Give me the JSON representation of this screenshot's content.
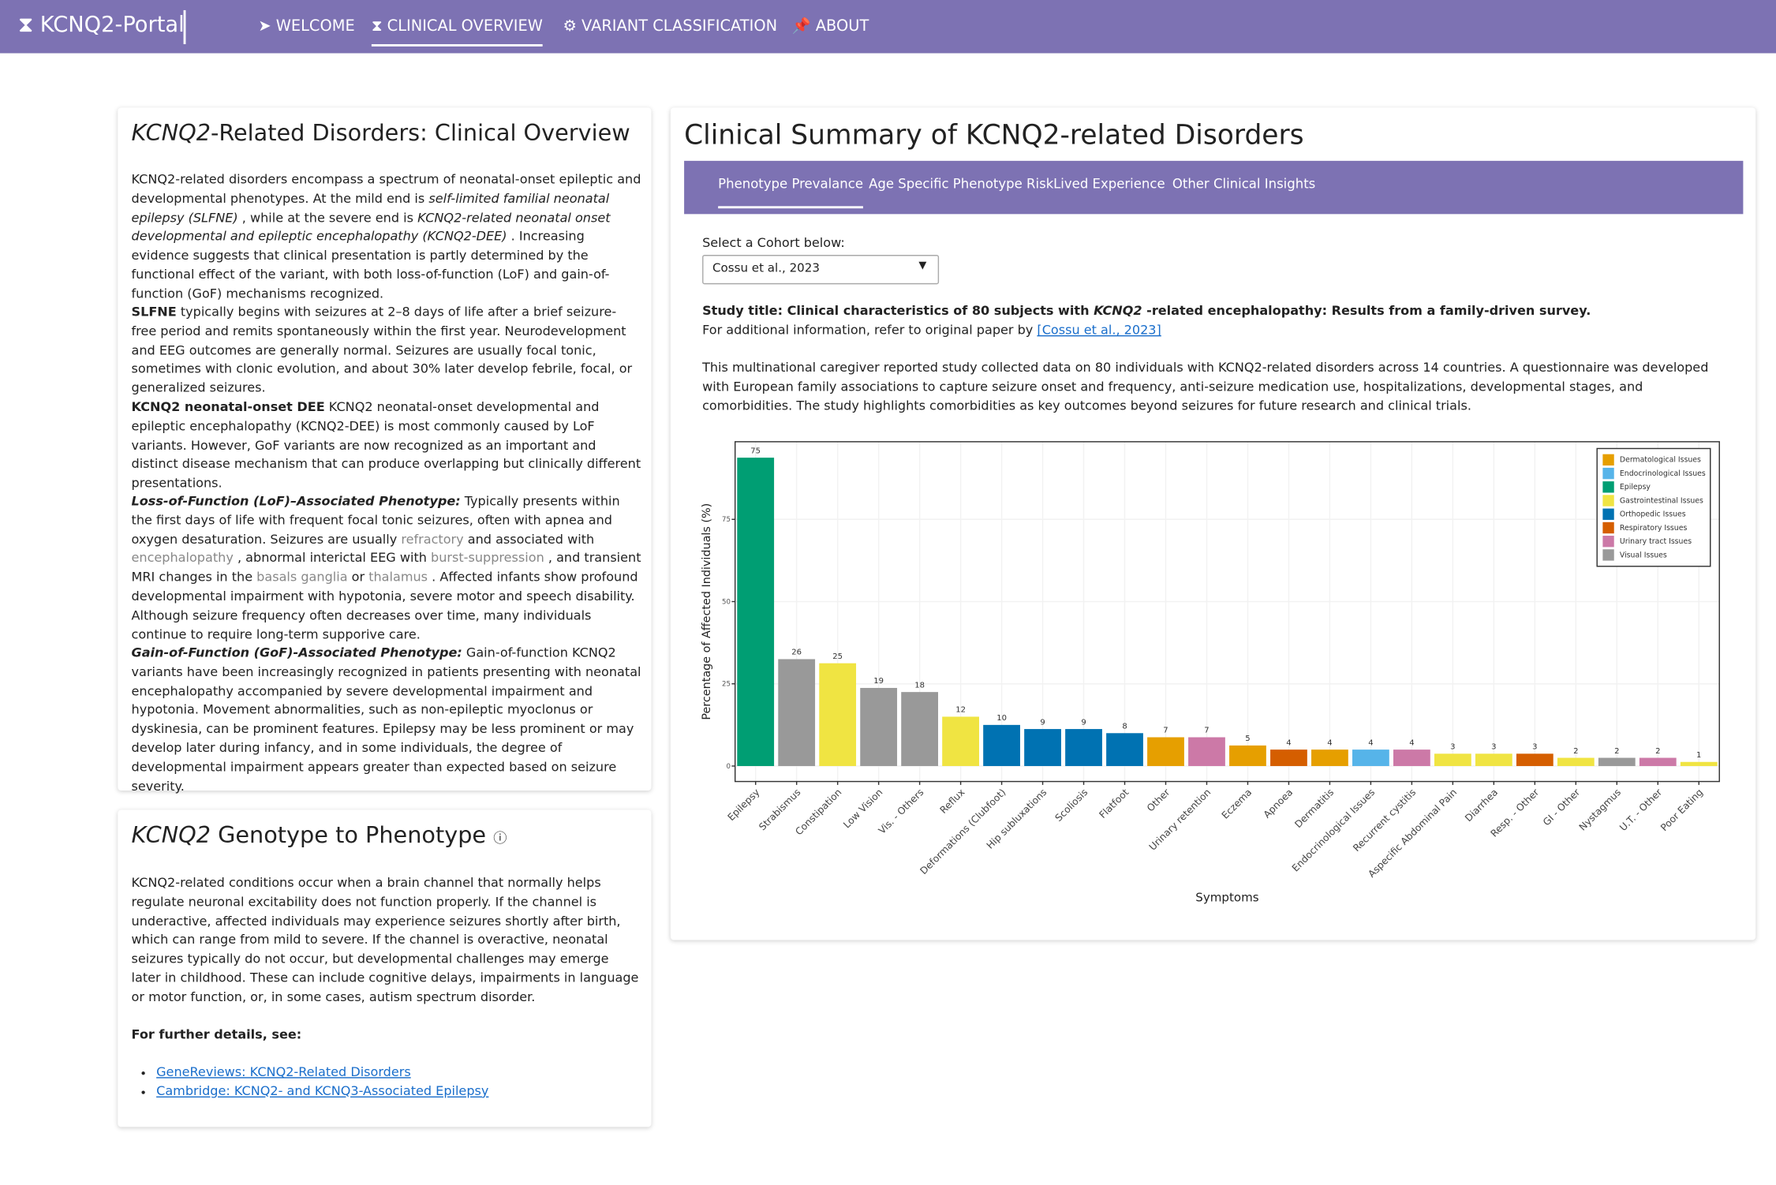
{
  "nav": {
    "brand": "KCNQ2-Portal",
    "items": [
      "WELCOME",
      "CLINICAL OVERVIEW",
      "VARIANT CLASSIFICATION",
      "ABOUT"
    ]
  },
  "overview": {
    "title": [
      "KCNQ2",
      "-Related Disorders: Clinical Overview"
    ],
    "p1": [
      "KCNQ2-related disorders encompass a spectrum of neonatal-onset epileptic and developmental phenotypes. At the mild end is ",
      "self-limited familial neonatal epilepsy (SLFNE)",
      " , while at the severe end is ",
      "KCNQ2-related neonatal onset developmental and epileptic encephalopathy (KCNQ2-DEE)",
      " . Increasing evidence suggests that clinical presentation is partly determined by the functional effect of the variant, with both loss-of-function (LoF) and gain-of-function (GoF) mechanisms recognized."
    ],
    "p2": [
      "SLFNE",
      " typically begins with seizures at 2–8 days of life after a brief seizure-free period and remits spontaneously within the first year. Neurodevelopment and EEG outcomes are generally normal. Seizures are usually focal tonic, sometimes with clonic evolution, and about 30% later develop febrile, focal, or generalized seizures."
    ],
    "p3": [
      "KCNQ2 neonatal-onset DEE",
      " KCNQ2 neonatal-onset developmental and epileptic encephalopathy (KCNQ2-DEE) is most commonly caused by LoF variants. However, GoF variants are now recognized as an important and distinct disease mechanism that can produce overlapping but clinically different presentations."
    ],
    "p4": [
      "Loss-of-Function (LoF)–Associated Phenotype:",
      " Typically presents within the first days of life with frequent focal tonic seizures, often with apnea and oxygen desaturation. Seizures are usually ",
      "refractory",
      " and associated with ",
      "encephalopathy",
      " , abnormal interictal EEG with ",
      "burst-suppression",
      " , and transient MRI changes in the ",
      "basals ganglia",
      " or ",
      "thalamus",
      " . Affected infants show profound developmental impairment with hypotonia, severe motor and speech disability. Although seizure frequency often decreases over time, many individuals continue to require long-term supporive care."
    ],
    "p5": [
      "Gain-of-Function (GoF)-Associated Phenotype:",
      " Gain-of-function KCNQ2 variants have been increasingly recognized in patients presenting with neonatal encephalopathy accompanied by severe developmental impairment and hypotonia. Movement abnormalities, such as non-epileptic myoclonus or dyskinesia, can be prominent features. Epilepsy may be less prominent or may develop later during infancy, and in some individuals, the degree of developmental impairment appears greater than expected based on seizure severity."
    ]
  },
  "genotype": {
    "title": [
      "KCNQ2",
      " Genotype to Phenotype"
    ],
    "text": "KCNQ2-related conditions occur when a brain channel that normally helps regulate neuronal excitability does not function properly. If the channel is underactive, affected individuals may experience seizures shortly after birth, which can range from mild to severe. If the channel is overactive, neonatal seizures typically do not occur, but developmental challenges may emerge later in childhood. These can include cognitive delays, impairments in language or motor function, or, in some cases, autism spectrum disorder.",
    "further": "For further details, see:",
    "links": [
      "GeneReviews: KCNQ2-Related Disorders",
      "Cambridge: KCNQ2- and KCNQ3-Associated Epilepsy"
    ]
  },
  "summary": {
    "title": "Clinical Summary of KCNQ2-related Disorders",
    "tabs": [
      "Phenotype Prevalance",
      "Age Specific Phenotype Risk",
      "Lived Experience",
      "Other Clinical Insights"
    ],
    "select_label": "Select a Cohort below:",
    "select_value": "Cossu et al., 2023",
    "study": [
      "Study title: Clinical characteristics of 80 subjects with ",
      "KCNQ2",
      " -related encephalopathy: Results from a family-driven survey."
    ],
    "info": [
      "For additional information, refer to original paper by ",
      "[Cossu et al., 2023]"
    ],
    "description": "This multinational caregiver reported study collected data on 80 individuals with KCNQ2-related disorders across 14 countries. A questionnaire was developed with European family associations to capture seizure onset and frequency, anti-seizure medication use, hospitalizations, developmental stages, and comorbidities. The study highlights comorbidities as key outcomes beyond seizures for future research and clinical trials."
  },
  "chart_data": {
    "type": "bar",
    "x_label": "Symptoms",
    "y_label": "Percentage of Affected Individuals (%)",
    "categories": [
      "Epilepsy",
      "Strabismus",
      "Constipation",
      "Low Vision",
      "Vis. - Others",
      "Reflux",
      "Deformations (Clubfoot)",
      "Hip subluxations",
      "Scoliosis",
      "Flatfoot",
      "Other",
      "Urinary retention",
      "Eczema",
      "Apnoea",
      "Dermatitis",
      "Endocrinological Issues",
      "Recurrent cystitis",
      "Aspecific Abdominal Pain",
      "Diarrhea",
      "Resp. - Other",
      "GI - Other",
      "Nystagmus",
      "U.T. - Other",
      "Poor Eating"
    ],
    "counts": [
      75,
      26,
      25,
      19,
      18,
      12,
      10,
      9,
      9,
      8,
      7,
      7,
      5,
      4,
      4,
      4,
      4,
      3,
      3,
      3,
      2,
      2,
      2,
      1
    ],
    "series": [
      {
        "name": "Dermatological Issues",
        "color": "#E69F00",
        "values": [
          null,
          null,
          null,
          null,
          null,
          null,
          null,
          null,
          null,
          null,
          8.75,
          null,
          6.25,
          null,
          5,
          null,
          null,
          null,
          null,
          null,
          null,
          null,
          null,
          null
        ]
      },
      {
        "name": "Endocrinological Issues",
        "color": "#56B4E9",
        "values": [
          null,
          null,
          null,
          null,
          null,
          null,
          null,
          null,
          null,
          null,
          null,
          null,
          null,
          null,
          null,
          5,
          null,
          null,
          null,
          null,
          null,
          null,
          null,
          null
        ]
      },
      {
        "name": "Epilepsy",
        "color": "#009E73",
        "values": [
          93.75,
          null,
          null,
          null,
          null,
          null,
          null,
          null,
          null,
          null,
          null,
          null,
          null,
          null,
          null,
          null,
          null,
          null,
          null,
          null,
          null,
          null,
          null,
          null
        ]
      },
      {
        "name": "Gastrointestinal Issues",
        "color": "#F0E442",
        "values": [
          null,
          null,
          31.25,
          null,
          null,
          15,
          null,
          null,
          null,
          null,
          null,
          null,
          null,
          null,
          null,
          null,
          null,
          3.75,
          3.75,
          null,
          2.5,
          null,
          null,
          1.25
        ]
      },
      {
        "name": "Orthopedic Issues",
        "color": "#0072B2",
        "values": [
          null,
          null,
          null,
          null,
          null,
          null,
          12.5,
          11.25,
          11.25,
          10,
          null,
          null,
          null,
          null,
          null,
          null,
          null,
          null,
          null,
          null,
          null,
          null,
          null,
          null
        ]
      },
      {
        "name": "Respiratory Issues",
        "color": "#D55E00",
        "values": [
          null,
          null,
          null,
          null,
          null,
          null,
          null,
          null,
          null,
          null,
          null,
          null,
          null,
          5,
          null,
          null,
          null,
          null,
          null,
          3.75,
          null,
          null,
          null,
          null
        ]
      },
      {
        "name": "Urinary tract Issues",
        "color": "#CC79A7",
        "values": [
          null,
          null,
          null,
          null,
          null,
          null,
          null,
          null,
          null,
          null,
          null,
          8.75,
          null,
          null,
          null,
          null,
          5,
          null,
          null,
          null,
          null,
          null,
          2.5,
          null
        ]
      },
      {
        "name": "Visual Issues",
        "color": "#999999",
        "values": [
          null,
          32.5,
          null,
          23.75,
          22.5,
          null,
          null,
          null,
          null,
          null,
          null,
          null,
          null,
          null,
          null,
          null,
          null,
          null,
          null,
          null,
          null,
          2.5,
          null,
          null
        ]
      }
    ],
    "ylim": [
      -4.7,
      98.6
    ],
    "yticks": [
      0,
      25,
      50,
      75
    ],
    "grid": true,
    "legend": "top-right"
  }
}
